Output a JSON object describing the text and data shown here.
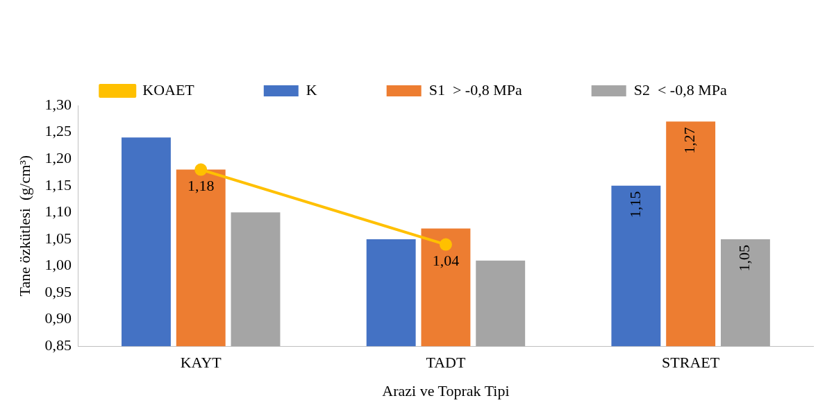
{
  "chart_data": {
    "type": "bar",
    "xlabel": "Arazi ve Toprak Tipi",
    "ylabel": "Tane özkütlesi  (g/cm³)",
    "categories": [
      "KAYT",
      "TADT",
      "STRAET"
    ],
    "series": [
      {
        "name": "K",
        "color": "#4472c4",
        "values": [
          1.24,
          1.05,
          1.15
        ],
        "value_labels": [
          null,
          null,
          "1,15"
        ]
      },
      {
        "name": "S1  > -0,8 MPa",
        "color": "#ed7d31",
        "values": [
          1.18,
          1.07,
          1.27
        ],
        "value_labels": [
          null,
          null,
          "1,27"
        ]
      },
      {
        "name": "S2  < -0,8 MPa",
        "color": "#a5a5a5",
        "values": [
          1.1,
          1.01,
          1.05
        ],
        "value_labels": [
          null,
          null,
          "1,05"
        ]
      },
      {
        "name": "KOAET",
        "type": "line",
        "color": "#ffc000",
        "values": [
          1.18,
          1.04,
          null
        ],
        "value_labels": [
          "1,18",
          "1,04",
          null
        ]
      }
    ],
    "ylim": [
      0.85,
      1.3
    ],
    "yticks": [
      {
        "value": 0.85,
        "label": "0,85"
      },
      {
        "value": 0.9,
        "label": "0,90"
      },
      {
        "value": 0.95,
        "label": "0,95"
      },
      {
        "value": 1.0,
        "label": "1,00"
      },
      {
        "value": 1.05,
        "label": "1,05"
      },
      {
        "value": 1.1,
        "label": "1,10"
      },
      {
        "value": 1.15,
        "label": "1,15"
      },
      {
        "value": 1.2,
        "label": "1,20"
      },
      {
        "value": 1.25,
        "label": "1,25"
      },
      {
        "value": 1.3,
        "label": "1,30"
      }
    ],
    "grid": false,
    "legend": "top",
    "marker": "circle"
  }
}
